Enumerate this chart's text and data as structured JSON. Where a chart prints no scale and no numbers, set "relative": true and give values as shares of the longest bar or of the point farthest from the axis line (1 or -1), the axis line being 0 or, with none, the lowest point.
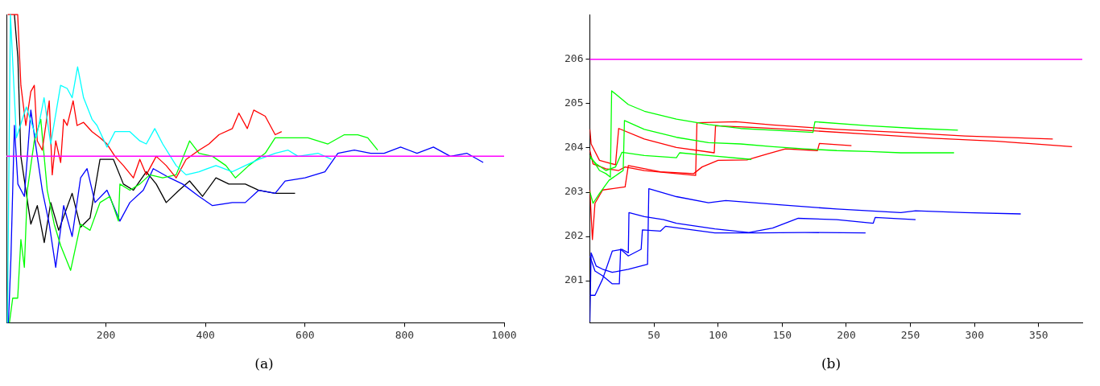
{
  "chart_data": [
    {
      "type": "line",
      "relative": true,
      "xlim": [
        0,
        1000
      ],
      "xticks": [
        200,
        400,
        600,
        800,
        1000
      ],
      "grid": false,
      "legend": false,
      "annotations": [
        "(a)"
      ],
      "ref_lines": [
        {
          "axis": "y",
          "value": 0.54,
          "color": "#ff00ff"
        }
      ],
      "series": [
        {
          "color": "#00ffff",
          "x": [
            2,
            8,
            20,
            40,
            60,
            75.6,
            88.9,
            108.8,
            122,
            132,
            143,
            155,
            172,
            182,
            202,
            218,
            248,
            268,
            281,
            298,
            314,
            341,
            361,
            387,
            421,
            454,
            480,
            507,
            540,
            566,
            586,
            626,
            653
          ],
          "values": [
            0,
            1.0,
            0.6,
            0.7,
            0.6,
            0.73,
            0.58,
            0.77,
            0.76,
            0.73,
            0.83,
            0.73,
            0.66,
            0.64,
            0.57,
            0.62,
            0.62,
            0.59,
            0.58,
            0.63,
            0.58,
            0.51,
            0.48,
            0.49,
            0.51,
            0.49,
            0.51,
            0.53,
            0.55,
            0.56,
            0.54,
            0.55,
            0.53
          ]
        },
        {
          "color": "#ff0000",
          "x": [
            2.7,
            22.6,
            29,
            39,
            49,
            56,
            62,
            72,
            86,
            92,
            99,
            109,
            115,
            122,
            134,
            142,
            155,
            172,
            188,
            202,
            218,
            235,
            255,
            268,
            281,
            301,
            321,
            341,
            361,
            387,
            407,
            427,
            454,
            467,
            484,
            497,
            520,
            540,
            553
          ],
          "values": [
            1.0,
            1.0,
            0.77,
            0.64,
            0.75,
            0.77,
            0.59,
            0.56,
            0.72,
            0.48,
            0.59,
            0.52,
            0.66,
            0.64,
            0.72,
            0.64,
            0.65,
            0.62,
            0.6,
            0.58,
            0.54,
            0.51,
            0.47,
            0.53,
            0.48,
            0.54,
            0.51,
            0.47,
            0.53,
            0.56,
            0.58,
            0.61,
            0.63,
            0.68,
            0.63,
            0.69,
            0.67,
            0.61,
            0.62
          ]
        },
        {
          "color": "#00ff00",
          "x": [
            6,
            12.6,
            22.6,
            29,
            36,
            42,
            56,
            69,
            82,
            96,
            109,
            129,
            149,
            168,
            188,
            208,
            225,
            228,
            248,
            268,
            288,
            314,
            341,
            368,
            387,
            414,
            441,
            460,
            487,
            520,
            540,
            573,
            606,
            646,
            679,
            706,
            726,
            746
          ],
          "values": [
            0,
            0.08,
            0.08,
            0.27,
            0.18,
            0.43,
            0.59,
            0.66,
            0.43,
            0.32,
            0.25,
            0.17,
            0.32,
            0.3,
            0.39,
            0.41,
            0.33,
            0.45,
            0.43,
            0.45,
            0.48,
            0.47,
            0.48,
            0.59,
            0.55,
            0.54,
            0.51,
            0.47,
            0.51,
            0.55,
            0.6,
            0.6,
            0.6,
            0.58,
            0.61,
            0.61,
            0.6,
            0.56
          ]
        },
        {
          "color": "#0000ff",
          "x": [
            4,
            9,
            16,
            23,
            36,
            49,
            62,
            72,
            86,
            99,
            115,
            132,
            149,
            162,
            178,
            202,
            228,
            248,
            275,
            295,
            328,
            354,
            387,
            414,
            454,
            480,
            507,
            540,
            560,
            600,
            640,
            666,
            699,
            732,
            759,
            792,
            825,
            858,
            892,
            925,
            958
          ],
          "values": [
            0,
            0.21,
            0.64,
            0.45,
            0.41,
            0.69,
            0.54,
            0.43,
            0.32,
            0.18,
            0.38,
            0.28,
            0.47,
            0.5,
            0.39,
            0.43,
            0.33,
            0.39,
            0.43,
            0.5,
            0.47,
            0.45,
            0.41,
            0.38,
            0.39,
            0.39,
            0.43,
            0.42,
            0.46,
            0.47,
            0.49,
            0.55,
            0.56,
            0.55,
            0.55,
            0.57,
            0.55,
            0.57,
            0.54,
            0.55,
            0.52
          ]
        },
        {
          "color": "#000000",
          "x": [
            16,
            23,
            29,
            49,
            62,
            76,
            89,
            105,
            132,
            149,
            168,
            188,
            215,
            235,
            255,
            281,
            301,
            321,
            347,
            368,
            394,
            421,
            447,
            480,
            507,
            540,
            566,
            580
          ],
          "values": [
            1.0,
            0.86,
            0.54,
            0.32,
            0.38,
            0.26,
            0.39,
            0.3,
            0.42,
            0.31,
            0.34,
            0.53,
            0.53,
            0.45,
            0.43,
            0.49,
            0.45,
            0.39,
            0.43,
            0.46,
            0.41,
            0.47,
            0.45,
            0.45,
            0.43,
            0.42,
            0.42,
            0.42
          ]
        }
      ]
    },
    {
      "type": "line",
      "xlim": [
        0,
        384
      ],
      "xticks": [
        50,
        100,
        150,
        200,
        250,
        300,
        350
      ],
      "ylim": [
        200.05,
        207
      ],
      "yticks": [
        201,
        202,
        203,
        204,
        205,
        206
      ],
      "grid": false,
      "legend": false,
      "annotations": [
        "(b)"
      ],
      "ref_lines": [
        {
          "axis": "y",
          "value": 206,
          "color": "#ff00ff"
        }
      ],
      "series": [
        {
          "color": "#00ff00",
          "x": [
            0,
            2.5,
            7.5,
            12.5,
            16,
            17,
            30,
            42.5,
            67.5,
            92.5,
            117.5,
            142.5,
            174,
            175.5,
            217.5,
            255,
            287
          ],
          "values": [
            203.83,
            203.72,
            203.49,
            203.42,
            203.34,
            205.29,
            204.98,
            204.83,
            204.65,
            204.53,
            204.44,
            204.4,
            204.35,
            204.59,
            204.5,
            204.44,
            204.4
          ]
        },
        {
          "color": "#00ff00",
          "x": [
            0,
            2.5,
            7.5,
            15,
            22.5,
            26,
            27,
            42.5,
            67.5,
            92.5,
            117.5,
            142.5,
            167.5,
            192.5,
            217.5,
            242.5,
            284
          ],
          "values": [
            203.01,
            202.75,
            202.97,
            203.27,
            203.42,
            203.49,
            204.62,
            204.42,
            204.24,
            204.12,
            204.09,
            204.03,
            203.98,
            203.94,
            203.92,
            203.89,
            203.89
          ]
        },
        {
          "color": "#00ff00",
          "x": [
            0,
            5,
            12.5,
            20,
            25,
            42.5,
            67.5,
            70,
            92.5,
            126
          ],
          "values": [
            203.79,
            203.64,
            203.49,
            203.57,
            203.9,
            203.83,
            203.78,
            203.89,
            203.83,
            203.74
          ]
        },
        {
          "color": "#ff0000",
          "x": [
            0,
            1,
            7.5,
            12.5,
            20,
            22.5,
            42.5,
            67.5,
            97,
            98,
            130,
            167.5,
            217.5,
            267.5,
            317.5,
            376
          ],
          "values": [
            204.42,
            204.09,
            203.72,
            203.68,
            203.62,
            204.44,
            204.2,
            204.01,
            203.89,
            204.5,
            204.46,
            204.4,
            204.31,
            204.22,
            204.15,
            204.03
          ]
        },
        {
          "color": "#ff0000",
          "x": [
            0,
            2.5,
            12.5,
            22.5,
            27.5,
            42.5,
            67.5,
            82.5,
            83.5,
            114,
            142.5,
            192.5,
            242.5,
            292.5,
            361
          ],
          "values": [
            203.94,
            203.64,
            203.53,
            203.49,
            203.57,
            203.49,
            203.42,
            203.38,
            204.57,
            204.59,
            204.52,
            204.42,
            204.35,
            204.27,
            204.2
          ]
        },
        {
          "color": "#ff0000",
          "x": [
            0,
            2,
            4,
            10,
            17.5,
            27.5,
            30,
            55,
            81,
            87.5,
            100,
            122.5,
            138,
            152.5,
            177.5,
            179,
            204
          ],
          "values": [
            203.05,
            201.93,
            202.75,
            203.05,
            203.08,
            203.12,
            203.6,
            203.46,
            203.42,
            203.57,
            203.72,
            203.73,
            203.86,
            203.98,
            203.94,
            204.1,
            204.05
          ]
        },
        {
          "color": "#0000ff",
          "x": [
            0,
            1,
            5,
            10,
            17.5,
            30,
            45,
            46,
            67.5,
            92.5,
            106,
            150,
            192.5,
            242.5,
            254,
            292.5,
            336
          ],
          "values": [
            200.07,
            201.63,
            201.33,
            201.26,
            201.19,
            201.26,
            201.37,
            203.08,
            202.9,
            202.76,
            202.81,
            202.71,
            202.62,
            202.54,
            202.58,
            202.54,
            202.51
          ]
        },
        {
          "color": "#0000ff",
          "x": [
            0,
            4,
            10,
            17.5,
            25,
            30,
            30.5,
            42.5,
            57.5,
            67.5,
            97.5,
            124,
            142.5,
            162.5,
            192.5,
            221,
            222.5,
            254
          ],
          "values": [
            200.67,
            200.67,
            201.04,
            201.67,
            201.71,
            201.63,
            202.54,
            202.45,
            202.38,
            202.3,
            202.17,
            202.09,
            202.19,
            202.41,
            202.38,
            202.3,
            202.43,
            202.38
          ]
        },
        {
          "color": "#0000ff",
          "x": [
            0,
            4,
            10,
            17.5,
            23,
            24,
            30,
            40,
            41,
            55,
            59,
            80,
            97.5,
            130,
            167.5,
            215
          ],
          "values": [
            201.56,
            201.22,
            201.11,
            200.93,
            200.93,
            201.71,
            201.56,
            201.71,
            202.15,
            202.12,
            202.23,
            202.15,
            202.08,
            202.08,
            202.09,
            202.08
          ]
        }
      ]
    }
  ]
}
